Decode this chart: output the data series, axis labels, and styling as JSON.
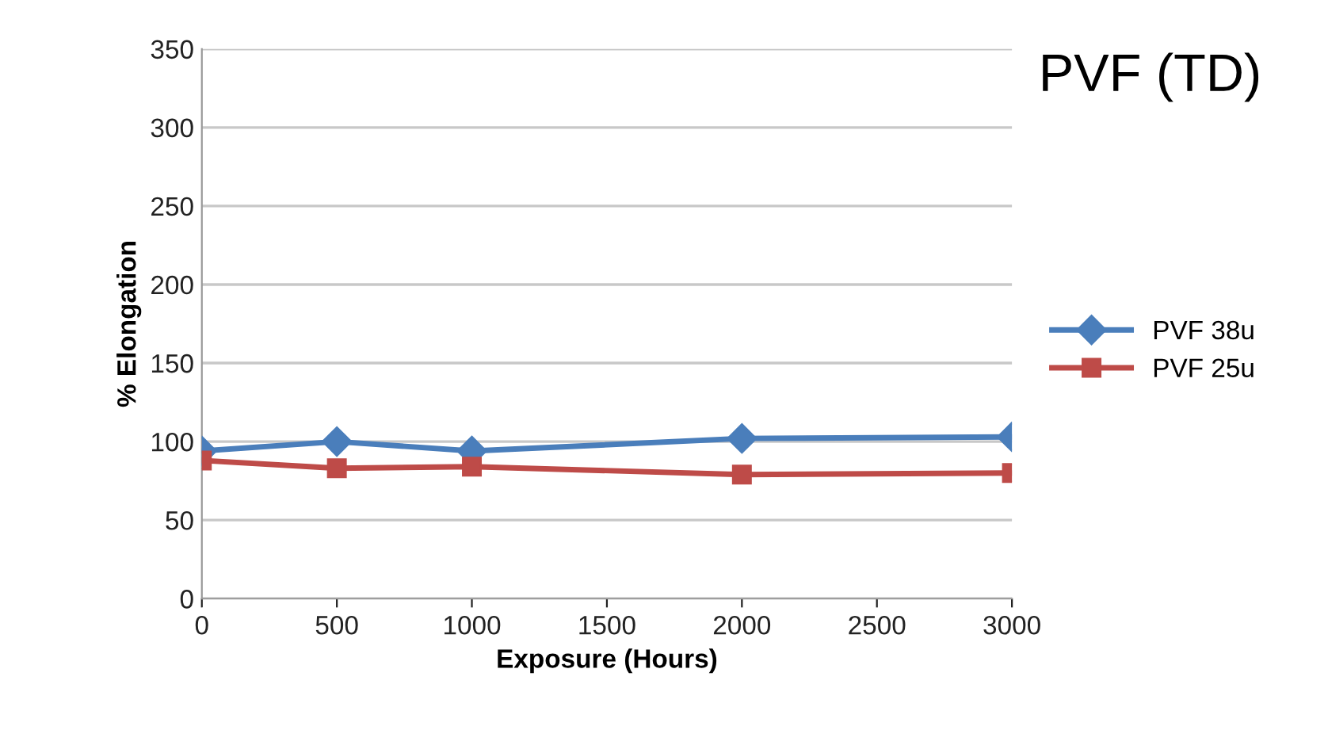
{
  "chart_data": {
    "type": "line",
    "title": "PVF (TD)",
    "xlabel": "Exposure (Hours)",
    "ylabel": "% Elongation",
    "x": [
      0,
      500,
      1000,
      2000,
      3000
    ],
    "series": [
      {
        "name": "PVF 38u",
        "color": "#4a7ebb",
        "marker": "diamond",
        "values": [
          94,
          100,
          94,
          102,
          103
        ]
      },
      {
        "name": "PVF 25u",
        "color": "#be4b48",
        "marker": "square",
        "values": [
          88,
          83,
          84,
          79,
          80
        ]
      }
    ],
    "xlim": [
      0,
      3000
    ],
    "xticks": [
      0,
      500,
      1000,
      1500,
      2000,
      2500,
      3000
    ],
    "ylim": [
      0,
      350
    ],
    "yticks": [
      0,
      50,
      100,
      150,
      200,
      250,
      300,
      350
    ],
    "grid": "y",
    "legend": "right",
    "line_style": "solid"
  }
}
